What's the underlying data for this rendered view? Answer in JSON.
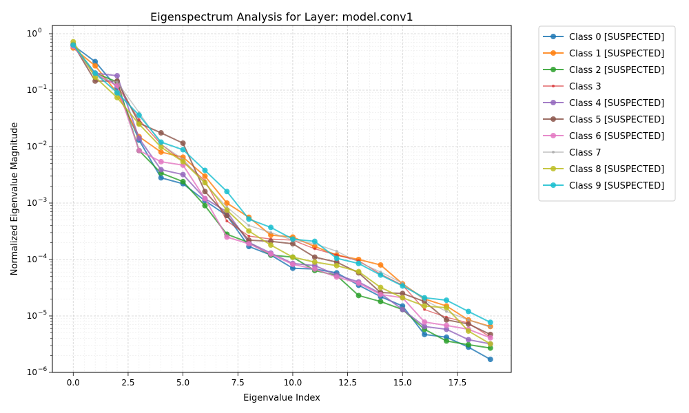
{
  "chart_data": {
    "type": "line",
    "title": "Eigenspectrum Analysis for Layer: model.conv1",
    "xlabel": "Eigenvalue Index",
    "ylabel": "Normalized Eigenvalue Magnitude",
    "xlim": [
      -0.95,
      19.95
    ],
    "ylim": [
      1e-06,
      1.4
    ],
    "yscale": "log",
    "grid": "major and minor",
    "legend_placement": "outside-right-top",
    "x_ticks": [
      0.0,
      2.5,
      5.0,
      7.5,
      10.0,
      12.5,
      15.0,
      17.5
    ],
    "x_tick_labels": [
      "0.0",
      "2.5",
      "5.0",
      "7.5",
      "10.0",
      "12.5",
      "15.0",
      "17.5"
    ],
    "y_ticks": [
      1e-06,
      1e-05,
      0.0001,
      0.001,
      0.01,
      0.1,
      1
    ],
    "y_tick_labels": [
      {
        "base": "10",
        "exp": "−6"
      },
      {
        "base": "10",
        "exp": "−5"
      },
      {
        "base": "10",
        "exp": "−4"
      },
      {
        "base": "10",
        "exp": "−3"
      },
      {
        "base": "10",
        "exp": "−2"
      },
      {
        "base": "10",
        "exp": "−1"
      },
      {
        "base": "10",
        "exp": "0"
      }
    ],
    "x": [
      0,
      1,
      2,
      3,
      4,
      5,
      6,
      7,
      8,
      9,
      10,
      11,
      12,
      13,
      14,
      15,
      16,
      17,
      18,
      19
    ],
    "series": [
      {
        "name": "Class 0 [SUSPECTED]",
        "color": "#1f77b4",
        "marker": "large",
        "values": [
          0.62,
          0.32,
          0.11,
          0.013,
          0.0028,
          0.0022,
          0.0011,
          0.0006,
          0.00017,
          0.00012,
          7e-05,
          6.8e-05,
          5.8e-05,
          3.5e-05,
          2.2e-05,
          1.5e-05,
          4.7e-06,
          4.2e-06,
          2.8e-06,
          1.7e-06
        ]
      },
      {
        "name": "Class 1 [SUSPECTED]",
        "color": "#ff7f0e",
        "marker": "large",
        "values": [
          0.56,
          0.27,
          0.09,
          0.015,
          0.008,
          0.0065,
          0.003,
          0.001,
          0.00056,
          0.00027,
          0.00025,
          0.00017,
          0.00012,
          0.0001,
          8e-05,
          3.7e-05,
          2e-05,
          1.5e-05,
          8.5e-06,
          6.5e-06
        ]
      },
      {
        "name": "Class 2 [SUSPECTED]",
        "color": "#2ca02c",
        "marker": "large",
        "values": [
          0.63,
          0.2,
          0.14,
          0.0085,
          0.0034,
          0.0024,
          0.0009,
          0.00028,
          0.0002,
          0.00012,
          0.00011,
          6.4e-05,
          5.2e-05,
          2.3e-05,
          1.8e-05,
          1.3e-05,
          5.8e-06,
          3.6e-06,
          3.1e-06,
          2.7e-06
        ]
      },
      {
        "name": "Class 3",
        "color": "#d62728",
        "marker": "small",
        "values": [
          0.6,
          0.19,
          0.12,
          0.03,
          0.011,
          0.0055,
          0.0025,
          0.00048,
          0.00026,
          0.00023,
          0.00022,
          0.000155,
          0.00012,
          9.5e-05,
          5.5e-05,
          3.5e-05,
          1.3e-05,
          9.5e-06,
          7.5e-06,
          4.2e-06
        ]
      },
      {
        "name": "Class 4 [SUSPECTED]",
        "color": "#9467bd",
        "marker": "large",
        "values": [
          0.61,
          0.2,
          0.18,
          0.014,
          0.0039,
          0.0032,
          0.0012,
          0.0007,
          0.0002,
          0.00013,
          8.5e-05,
          7.8e-05,
          5.3e-05,
          4e-05,
          2.5e-05,
          1.3e-05,
          6.5e-06,
          5.8e-06,
          3.8e-06,
          3.2e-06
        ]
      },
      {
        "name": "Class 5 [SUSPECTED]",
        "color": "#8c564b",
        "marker": "large",
        "values": [
          0.65,
          0.145,
          0.145,
          0.026,
          0.0175,
          0.0115,
          0.0016,
          0.0006,
          0.00022,
          0.00021,
          0.00019,
          0.00011,
          9e-05,
          5.8e-05,
          2.6e-05,
          2.5e-05,
          1.8e-05,
          8.5e-06,
          7.2e-06,
          4.7e-06
        ]
      },
      {
        "name": "Class 6 [SUSPECTED]",
        "color": "#e377c2",
        "marker": "large",
        "values": [
          0.6,
          0.2,
          0.12,
          0.0085,
          0.0054,
          0.0047,
          0.0012,
          0.00025,
          0.00019,
          0.000125,
          8.2e-05,
          6.8e-05,
          4.9e-05,
          3.8e-05,
          2.4e-05,
          2.1e-05,
          7.8e-06,
          6.8e-06,
          5.8e-06,
          4.1e-06
        ]
      },
      {
        "name": "Class 7",
        "color": "#a5a5a5",
        "marker": "small",
        "values": [
          0.66,
          0.17,
          0.14,
          0.04,
          0.011,
          0.006,
          0.0022,
          0.00085,
          0.0004,
          0.0003,
          0.00022,
          0.00019,
          0.00014,
          9e-05,
          6e-05,
          3.8e-05,
          1.9e-05,
          1.2e-05,
          8.5e-06,
          6.3e-06
        ]
      },
      {
        "name": "Class 8 [SUSPECTED]",
        "color": "#bcbd22",
        "marker": "large",
        "values": [
          0.72,
          0.17,
          0.074,
          0.025,
          0.0098,
          0.0054,
          0.0023,
          0.00075,
          0.00032,
          0.00018,
          0.00011,
          9e-05,
          7.8e-05,
          6.1e-05,
          3.2e-05,
          2.1e-05,
          1.5e-05,
          1.4e-05,
          5.4e-06,
          3.2e-06
        ]
      },
      {
        "name": "Class 9 [SUSPECTED]",
        "color": "#17becf",
        "marker": "large",
        "values": [
          0.63,
          0.2,
          0.09,
          0.036,
          0.012,
          0.0088,
          0.0038,
          0.0016,
          0.00052,
          0.00037,
          0.00023,
          0.00021,
          0.000105,
          8.5e-05,
          5.3e-05,
          3.4e-05,
          2.1e-05,
          1.9e-05,
          1.2e-05,
          7.7e-06
        ]
      }
    ]
  }
}
